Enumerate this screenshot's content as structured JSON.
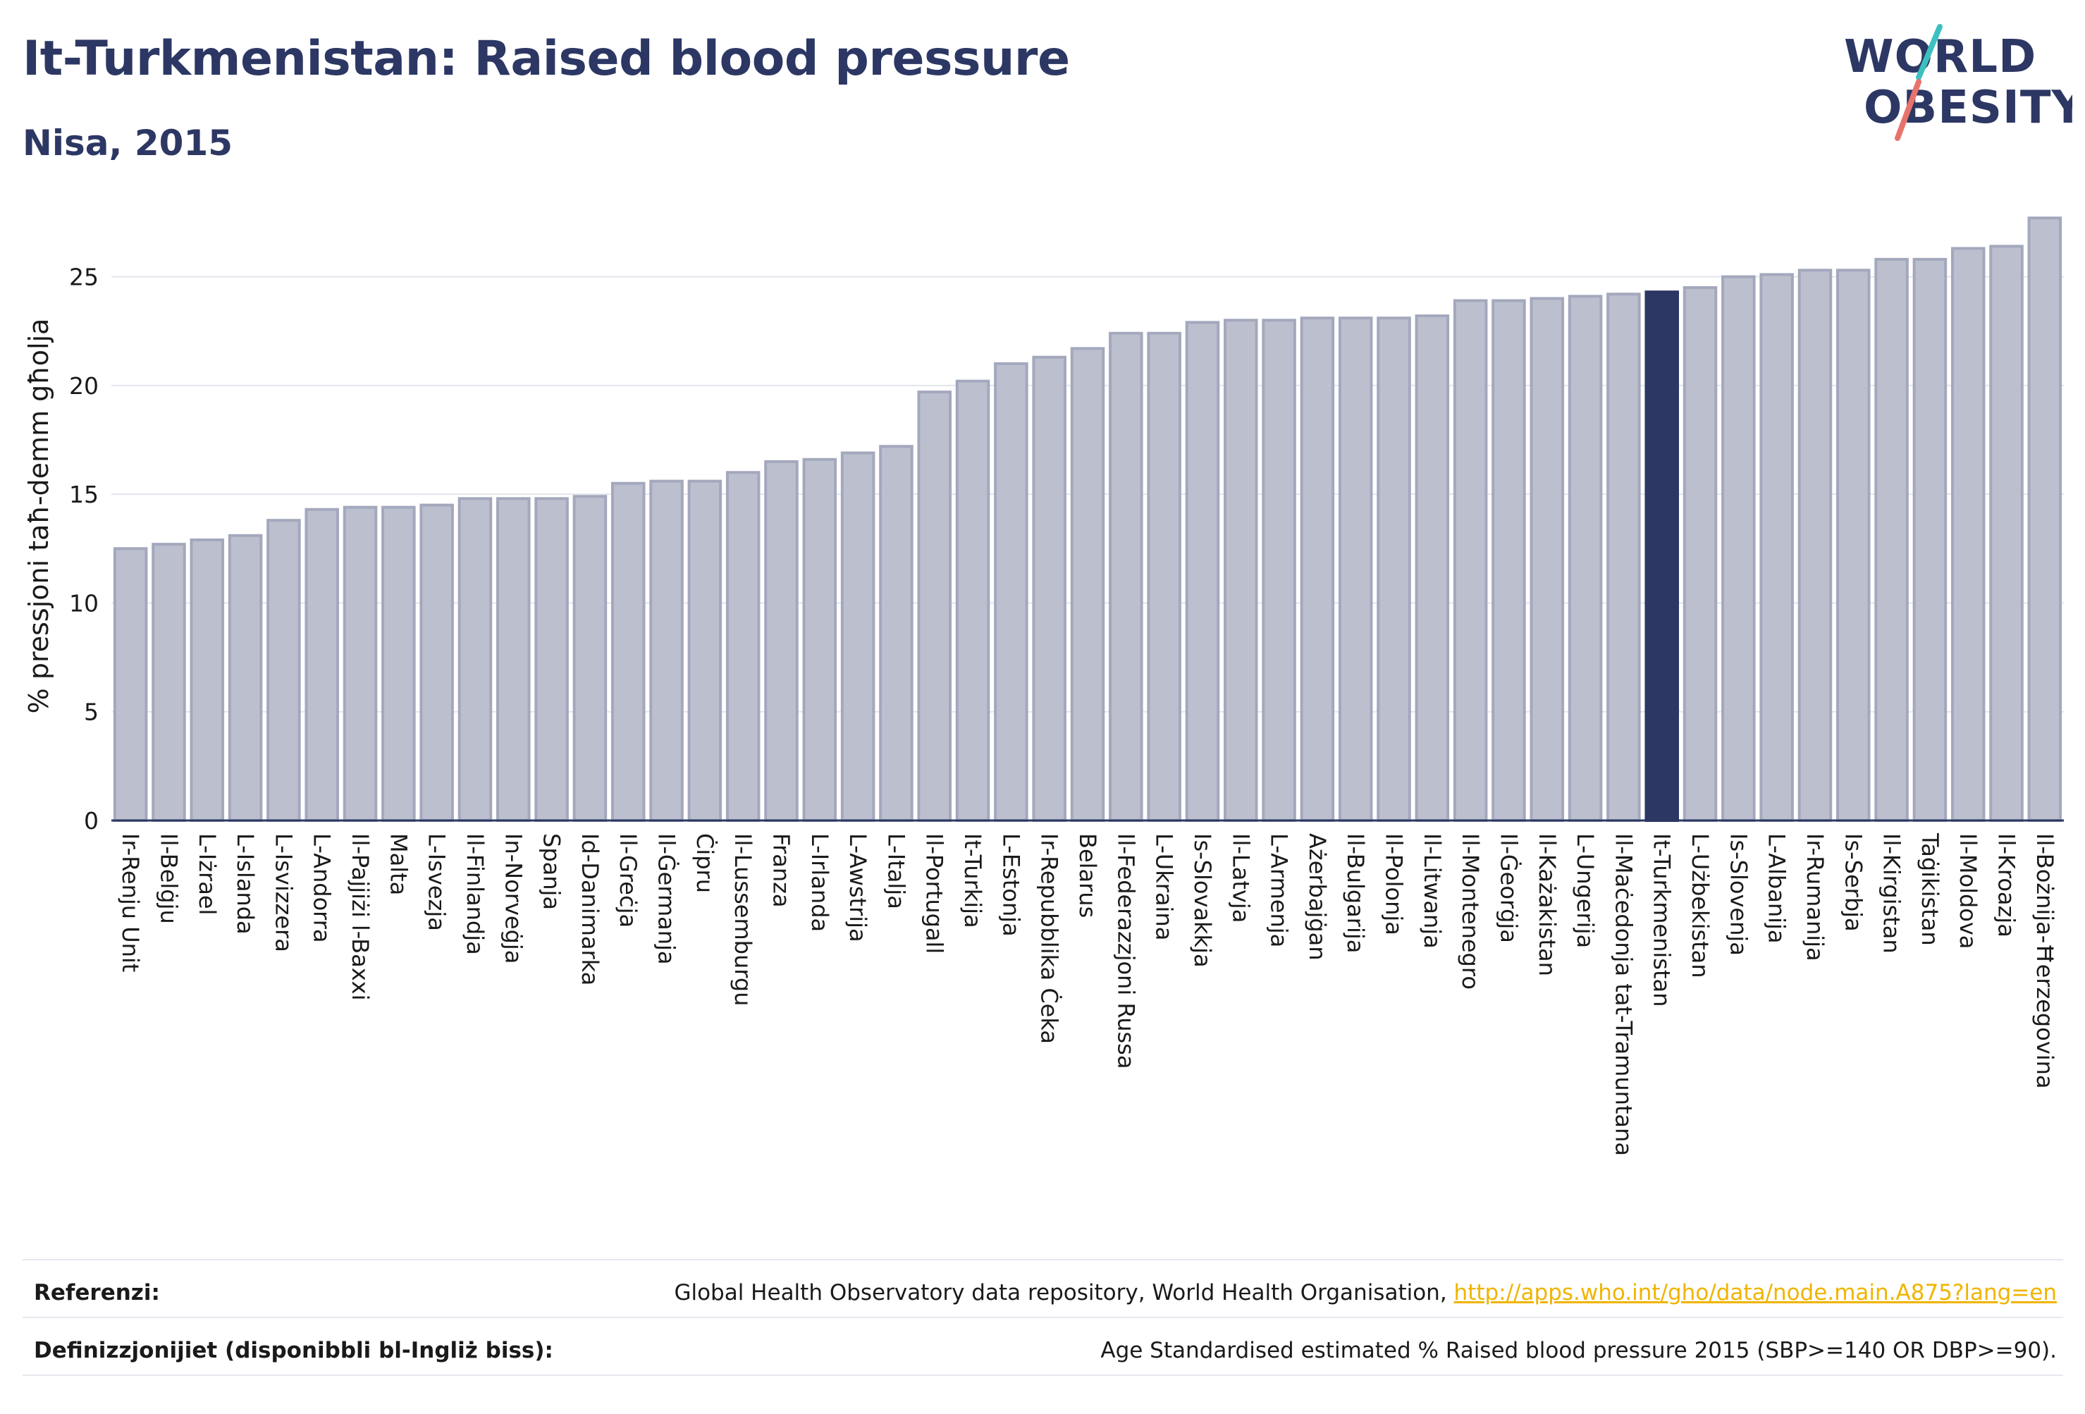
{
  "header": {
    "title": "It-Turkmenistan: Raised blood pressure",
    "subtitle": "Nisa, 2015"
  },
  "logo": {
    "line1": "WORLD",
    "line2": "OBESITY"
  },
  "footer": {
    "references_label": "Referenzi:",
    "references_text": "Global Health Observatory data repository, World Health Organisation, ",
    "references_link": "http://apps.who.int/gho/data/node.main.A875?lang=en",
    "definitions_label": "Definizzjonijiet (disponibbli bl-Ingliż biss):",
    "definitions_text": "Age Standardised estimated % Raised blood pressure 2015 (SBP>=140 OR DBP>=90)."
  },
  "colors": {
    "bar": "#bcc0ce",
    "bar_stroke": "#a3a8bd",
    "highlight": "#2c3764",
    "text": "#2c3764"
  },
  "chart_data": {
    "type": "bar",
    "ylabel": "% pressjoni taħ-demm għolja",
    "xlabel": "",
    "ylim": [
      0,
      28
    ],
    "yticks": [
      0,
      5,
      10,
      15,
      20,
      25
    ],
    "grid": true,
    "highlight": "It-Turkmenistan",
    "categories": [
      "Ir-Renju Unit",
      "Il-Belġju",
      "L-Iżrael",
      "L-Islanda",
      "L-Isvizzera",
      "L-Andorra",
      "Il-Pajjiżi l-Baxxi",
      "Malta",
      "L-Isvezja",
      "Il-Finlandja",
      "In-Norveġja",
      "Spanja",
      "Id-Danimarka",
      "Il-Greċja",
      "Il-Ġermanja",
      "Ċipru",
      "Il-Lussemburgu",
      "Franza",
      "L-Irlanda",
      "L-Awstrija",
      "L-Italja",
      "Il-Portugall",
      "It-Turkija",
      "L-Estonja",
      "Ir-Repubblika Ċeka",
      "Belarus",
      "Il-Federazzjoni Russa",
      "L-Ukraina",
      "Is-Slovakkja",
      "Il-Latvja",
      "L-Armenja",
      "Ażerbajġan",
      "Il-Bulgarija",
      "Il-Polonja",
      "Il-Litwanja",
      "Il-Montenegro",
      "Il-Ġeorġja",
      "Il-Każakistan",
      "L-Ungerija",
      "Il-Maċedonja tat-Tramuntana",
      "It-Turkmenistan",
      "L-Użbekistan",
      "Is-Slovenja",
      "L-Albanija",
      "Ir-Rumanija",
      "Is-Serbja",
      "Il-Kirgistan",
      "Taġikistan",
      "Il-Moldova",
      "Il-Kroazja",
      "Il-Bożnija-Ħerzegovina"
    ],
    "values": [
      12.5,
      12.7,
      12.9,
      13.1,
      13.8,
      14.3,
      14.4,
      14.4,
      14.5,
      14.8,
      14.8,
      14.8,
      14.9,
      15.5,
      15.6,
      15.6,
      16.0,
      16.5,
      16.6,
      16.9,
      17.2,
      19.7,
      20.2,
      21.0,
      21.3,
      21.7,
      22.4,
      22.4,
      22.9,
      23.0,
      23.0,
      23.1,
      23.1,
      23.1,
      23.2,
      23.9,
      23.9,
      24.0,
      24.1,
      24.2,
      24.3,
      24.5,
      25.0,
      25.1,
      25.3,
      25.3,
      25.8,
      25.8,
      26.3,
      26.4,
      27.7
    ]
  }
}
